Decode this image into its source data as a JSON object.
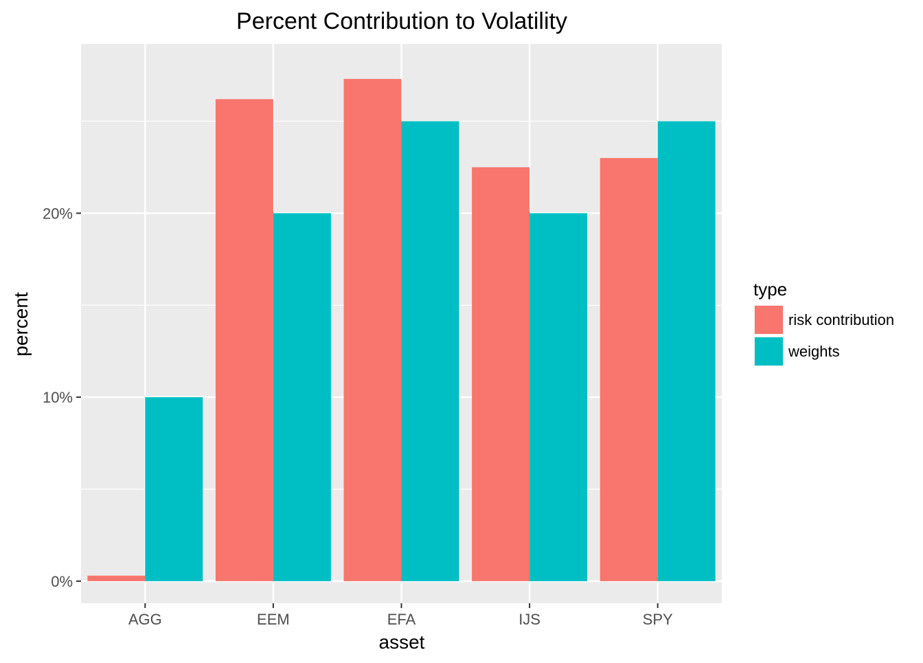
{
  "chart_data": {
    "type": "bar",
    "title": "Percent Contribution to Volatility",
    "xlabel": "asset",
    "ylabel": "percent",
    "categories": [
      "AGG",
      "EEM",
      "EFA",
      "IJS",
      "SPY"
    ],
    "series": [
      {
        "name": "risk contribution",
        "color": "#F8766D",
        "values": [
          0.3,
          26.2,
          27.3,
          22.5,
          23.0
        ]
      },
      {
        "name": "weights",
        "color": "#00BFC4",
        "values": [
          10,
          20,
          25,
          20,
          25
        ]
      }
    ],
    "ylim": [
      -1.2,
      29.2
    ],
    "yticks": [
      0,
      10,
      20
    ],
    "ytick_labels": [
      "0%",
      "10%",
      "20%"
    ],
    "grid": true,
    "legend": {
      "title": "type",
      "placement": "right"
    },
    "panel_background": "#EBEBEB",
    "grid_color": "#FFFFFF"
  }
}
